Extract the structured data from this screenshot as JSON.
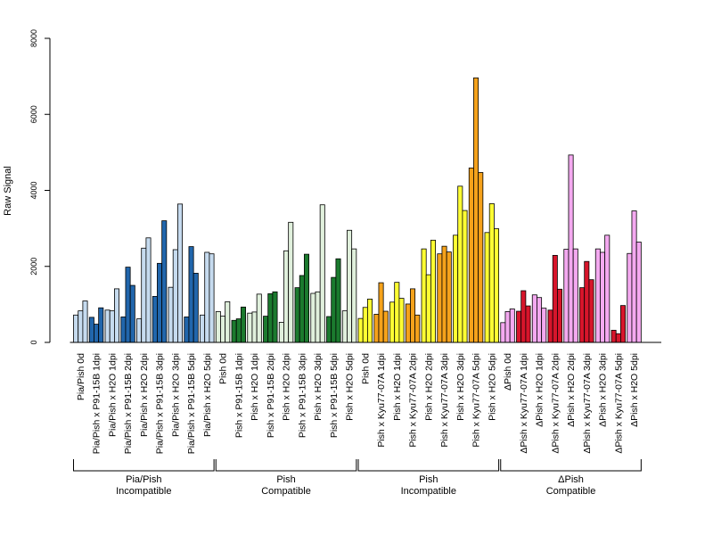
{
  "chart_data": {
    "type": "bar",
    "ylabel": "Raw Signal",
    "ylim": [
      0,
      8000
    ],
    "yticks": [
      0,
      2000,
      4000,
      6000,
      8000
    ],
    "grid": false,
    "categories": [
      "Pia/Pish 0d",
      "Pia/Pish x P91-15B 1dpi",
      "Pia/Pish x H2O 1dpi",
      "Pia/Pish x P91-15B 2dpi",
      "Pia/Pish x H2O 2dpi",
      "Pia/Pish x P91-15B 3dpi",
      "Pia/Pish x H2O 3dpi",
      "Pia/Pish x P91-15B 5dpi",
      "Pia/Pish x H2O 5dpi",
      "Pish 0d",
      "Pish x P91-15B 1dpi",
      "Pish x H2O 1dpi",
      "Pish x P91-15B 2dpi",
      "Pish x H2O 2dpi",
      "Pish x P91-15B 3dpi",
      "Pish x H2O 3dpi",
      "Pish x P91-15B 5dpi",
      "Pish x H2O 5dpi",
      "Pish 0d",
      "Pish x Kyu77-07A 1dpi",
      "Pish x H2O 1dpi",
      "Pish x Kyu77-07A 2dpi",
      "Pish x H2O 2dpi",
      "Pish x Kyu77-07A 3dpi",
      "Pish x H2O 3dpi",
      "Pish x Kyu77-07A 5dpi",
      "Pish x H2O 5dpi",
      "ΔPish 0d",
      "ΔPish x Kyu77-07A 1dpi",
      "ΔPish x H2O 1dpi",
      "ΔPish x Kyu77-07A 2dpi",
      "ΔPish x H2O 2dpi",
      "ΔPish x Kyu77-07A 3dpi",
      "ΔPish x H2O 3dpi",
      "ΔPish x Kyu77-07A 5dpi",
      "ΔPish x H2O 5dpi"
    ],
    "values": [
      [
        720,
        830,
        1090
      ],
      [
        660,
        480,
        910
      ],
      [
        850,
        830,
        1410
      ],
      [
        670,
        1980,
        1500
      ],
      [
        620,
        2480,
        2750
      ],
      [
        1210,
        2080,
        3200
      ],
      [
        1450,
        2440,
        3640
      ],
      [
        670,
        2520,
        1820
      ],
      [
        720,
        2370,
        2330
      ],
      [
        810,
        690,
        1070
      ],
      [
        580,
        620,
        930
      ],
      [
        770,
        800,
        1270
      ],
      [
        690,
        1280,
        1330
      ],
      [
        530,
        2410,
        3160
      ],
      [
        1440,
        1760,
        2320
      ],
      [
        1290,
        1330,
        3620
      ],
      [
        680,
        1710,
        2200
      ],
      [
        830,
        2950,
        2460
      ],
      [
        630,
        920,
        1140
      ],
      [
        740,
        1570,
        820
      ],
      [
        1060,
        1580,
        1160
      ],
      [
        1010,
        1410,
        720
      ],
      [
        2460,
        1780,
        2690
      ],
      [
        2330,
        2530,
        2380
      ],
      [
        2820,
        4110,
        3470
      ],
      [
        4590,
        6960,
        4470
      ],
      [
        2890,
        3650,
        2990
      ],
      [
        520,
        810,
        880
      ],
      [
        820,
        1360,
        960
      ],
      [
        1250,
        1180,
        900
      ],
      [
        850,
        2290,
        1400
      ],
      [
        2450,
        4930,
        2460
      ],
      [
        1440,
        2130,
        1650
      ],
      [
        2460,
        2370,
        2820
      ],
      [
        320,
        230,
        970
      ],
      [
        2340,
        3460,
        2640
      ]
    ],
    "bar_colors": [
      "#c6dbef",
      "#2166ac",
      "#c6dbef",
      "#2166ac",
      "#c6dbef",
      "#2166ac",
      "#c6dbef",
      "#2166ac",
      "#c6dbef",
      "#e0f0dc",
      "#1b7a2e",
      "#e0f0dc",
      "#1b7a2e",
      "#e0f0dc",
      "#1b7a2e",
      "#e0f0dc",
      "#1b7a2e",
      "#e0f0dc",
      "#ffff33",
      "#f5a21b",
      "#ffff33",
      "#f5a21b",
      "#ffff33",
      "#f5a21b",
      "#ffff33",
      "#f5a21b",
      "#ffff33",
      "#f4a9f0",
      "#d7152b",
      "#f4a9f0",
      "#d7152b",
      "#f4a9f0",
      "#d7152b",
      "#f4a9f0",
      "#d7152b",
      "#f4a9f0"
    ],
    "groups": [
      {
        "line1": "Pia/Pish",
        "line2": "Incompatible",
        "start": 0,
        "end": 8
      },
      {
        "line1": "Pish",
        "line2": "Compatible",
        "start": 9,
        "end": 17
      },
      {
        "line1": "Pish",
        "line2": "Incompatible",
        "start": 18,
        "end": 26
      },
      {
        "line1": "ΔPish",
        "line2": "Compatible",
        "start": 27,
        "end": 35
      }
    ]
  }
}
